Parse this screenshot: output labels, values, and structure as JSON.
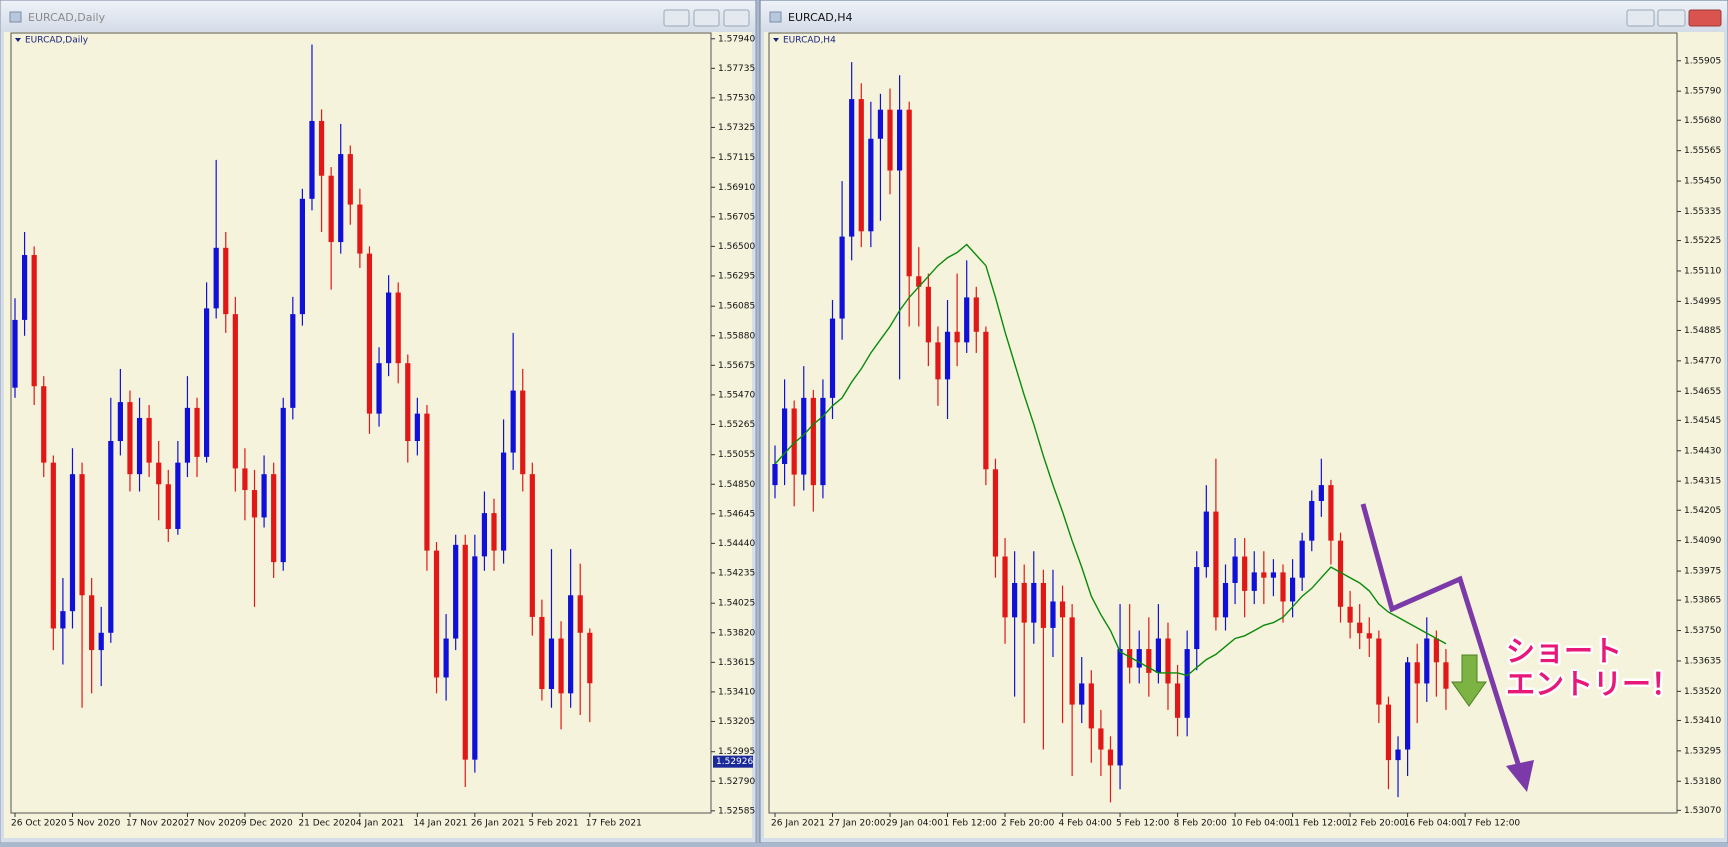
{
  "chart_data": [
    {
      "type": "candlestick",
      "window_title": "EURCAD,Daily",
      "title": "EURCAD,Daily",
      "up_color": "#1010d8",
      "down_color": "#e01818",
      "ylim": [
        1.5257,
        1.5798
      ],
      "yticks": [
        {
          "value": 1.5794,
          "label": "1.57940"
        },
        1.57735,
        {
          "value": 1.5753,
          "label": "1.57530"
        },
        1.57325,
        1.57115,
        {
          "value": 1.5691,
          "label": "1.56910"
        },
        1.56705,
        {
          "value": 1.565,
          "label": "1.56500"
        },
        1.56295,
        1.56085,
        {
          "value": 1.5588,
          "label": "1.55880"
        },
        1.55675,
        {
          "value": 1.5547,
          "label": "1.55470"
        },
        1.55265,
        1.55055,
        {
          "value": 1.5485,
          "label": "1.54850"
        },
        1.54645,
        {
          "value": 1.5444,
          "label": "1.54440"
        },
        1.54235,
        1.54025,
        {
          "value": 1.5382,
          "label": "1.53820"
        },
        1.53615,
        {
          "value": 1.5341,
          "label": "1.53410"
        },
        1.53205,
        1.52995,
        {
          "value": 1.5279,
          "label": "1.52790"
        },
        1.52585
      ],
      "current_price": 1.52926,
      "categories": [
        "26 Oct 2020",
        null,
        null,
        null,
        null,
        null,
        "5 Nov 2020",
        null,
        null,
        null,
        null,
        null,
        "17 Nov 2020",
        null,
        null,
        null,
        null,
        null,
        "27 Nov 2020",
        null,
        null,
        null,
        null,
        null,
        "9 Dec 2020",
        null,
        null,
        null,
        null,
        null,
        "21 Dec 2020",
        null,
        null,
        null,
        null,
        null,
        "4 Jan 2021",
        null,
        null,
        null,
        null,
        null,
        "14 Jan 2021",
        null,
        null,
        null,
        null,
        null,
        "26 Jan 2021",
        null,
        null,
        null,
        null,
        null,
        "5 Feb 2021",
        null,
        null,
        null,
        null,
        null,
        "17 Feb 2021"
      ],
      "ohlc": [
        [
          1.5552,
          1.5614,
          1.5545,
          1.5599
        ],
        [
          1.5599,
          1.566,
          1.5588,
          1.5644
        ],
        [
          1.5644,
          1.565,
          1.554,
          1.5553
        ],
        [
          1.5553,
          1.556,
          1.549,
          1.55
        ],
        [
          1.55,
          1.5505,
          1.537,
          1.5385
        ],
        [
          1.5385,
          1.542,
          1.536,
          1.5397
        ],
        [
          1.5397,
          1.551,
          1.5385,
          1.5492
        ],
        [
          1.5492,
          1.55,
          1.533,
          1.5408
        ],
        [
          1.5408,
          1.542,
          1.534,
          1.537
        ],
        [
          1.537,
          1.54,
          1.5345,
          1.5382
        ],
        [
          1.5382,
          1.5545,
          1.5375,
          1.5515
        ],
        [
          1.5515,
          1.5565,
          1.5505,
          1.5542
        ],
        [
          1.5542,
          1.555,
          1.548,
          1.5492
        ],
        [
          1.5492,
          1.5545,
          1.548,
          1.5531
        ],
        [
          1.5531,
          1.554,
          1.549,
          1.55
        ],
        [
          1.55,
          1.5515,
          1.546,
          1.5485
        ],
        [
          1.5485,
          1.5495,
          1.5445,
          1.5454
        ],
        [
          1.5454,
          1.5515,
          1.545,
          1.55
        ],
        [
          1.55,
          1.556,
          1.549,
          1.5538
        ],
        [
          1.5538,
          1.5545,
          1.549,
          1.5504
        ],
        [
          1.5504,
          1.5625,
          1.55,
          1.5607
        ],
        [
          1.5607,
          1.571,
          1.56,
          1.5649
        ],
        [
          1.5649,
          1.566,
          1.559,
          1.5603
        ],
        [
          1.5603,
          1.5615,
          1.548,
          1.5496
        ],
        [
          1.5496,
          1.551,
          1.546,
          1.5481
        ],
        [
          1.5481,
          1.5495,
          1.54,
          1.5462
        ],
        [
          1.5462,
          1.5505,
          1.5455,
          1.5492
        ],
        [
          1.5492,
          1.55,
          1.542,
          1.5431
        ],
        [
          1.5431,
          1.5545,
          1.5425,
          1.5538
        ],
        [
          1.5538,
          1.5615,
          1.553,
          1.5603
        ],
        [
          1.5603,
          1.569,
          1.5595,
          1.5683
        ],
        [
          1.5683,
          1.579,
          1.5675,
          1.5737
        ],
        [
          1.5737,
          1.5745,
          1.566,
          1.5699
        ],
        [
          1.5699,
          1.5705,
          1.562,
          1.5653
        ],
        [
          1.5653,
          1.5735,
          1.5645,
          1.5714
        ],
        [
          1.5714,
          1.572,
          1.5665,
          1.5679
        ],
        [
          1.5679,
          1.569,
          1.5635,
          1.5645
        ],
        [
          1.5645,
          1.565,
          1.552,
          1.5534
        ],
        [
          1.5534,
          1.558,
          1.5525,
          1.5569
        ],
        [
          1.5569,
          1.563,
          1.556,
          1.5618
        ],
        [
          1.5618,
          1.5625,
          1.5555,
          1.5569
        ],
        [
          1.5569,
          1.5575,
          1.55,
          1.5515
        ],
        [
          1.5515,
          1.5545,
          1.5505,
          1.5534
        ],
        [
          1.5534,
          1.554,
          1.5425,
          1.5439
        ],
        [
          1.5439,
          1.5445,
          1.534,
          1.5351
        ],
        [
          1.5351,
          1.5395,
          1.5335,
          1.5378
        ],
        [
          1.5378,
          1.545,
          1.537,
          1.5443
        ],
        [
          1.5443,
          1.545,
          1.5275,
          1.5294
        ],
        [
          1.5294,
          1.545,
          1.5285,
          1.5435
        ],
        [
          1.5435,
          1.548,
          1.5425,
          1.5465
        ],
        [
          1.5465,
          1.5475,
          1.5425,
          1.5439
        ],
        [
          1.5439,
          1.553,
          1.543,
          1.5507
        ],
        [
          1.5507,
          1.559,
          1.5495,
          1.555
        ],
        [
          1.555,
          1.5565,
          1.548,
          1.5492
        ],
        [
          1.5492,
          1.55,
          1.538,
          1.5393
        ],
        [
          1.5393,
          1.5405,
          1.5335,
          1.5343
        ],
        [
          1.5343,
          1.544,
          1.533,
          1.5378
        ],
        [
          1.5378,
          1.539,
          1.5315,
          1.534
        ],
        [
          1.534,
          1.544,
          1.533,
          1.5408
        ],
        [
          1.5408,
          1.543,
          1.5325,
          1.5382
        ],
        [
          1.5382,
          1.5385,
          1.532,
          1.5347
        ]
      ]
    },
    {
      "type": "candlestick",
      "window_title": "EURCAD,H4",
      "title": "EURCAD,H4",
      "up_color": "#1010d8",
      "down_color": "#e01818",
      "ylim": [
        1.5306,
        1.5601
      ],
      "yticks": [
        1.55905,
        {
          "value": 1.5579,
          "label": "1.55790"
        },
        {
          "value": 1.5568,
          "label": "1.55680"
        },
        1.55565,
        {
          "value": 1.5545,
          "label": "1.55450"
        },
        1.55335,
        1.55225,
        {
          "value": 1.5511,
          "label": "1.55110"
        },
        1.54995,
        1.54885,
        {
          "value": 1.5477,
          "label": "1.54770"
        },
        1.54655,
        1.54545,
        {
          "value": 1.5443,
          "label": "1.54430"
        },
        1.54315,
        1.54205,
        {
          "value": 1.5409,
          "label": "1.54090"
        },
        1.53975,
        1.53865,
        {
          "value": 1.5375,
          "label": "1.53750"
        },
        1.53635,
        {
          "value": 1.5352,
          "label": "1.53520"
        },
        {
          "value": 1.5341,
          "label": "1.53410"
        },
        1.53295,
        {
          "value": 1.5318,
          "label": "1.53180"
        },
        {
          "value": 1.5307,
          "label": "1.53070"
        }
      ],
      "categories": [
        "26 Jan 2021",
        null,
        null,
        null,
        null,
        null,
        "27 Jan 20:00",
        null,
        null,
        null,
        null,
        null,
        "29 Jan 04:00",
        null,
        null,
        null,
        null,
        null,
        "1 Feb 12:00",
        null,
        null,
        null,
        null,
        null,
        "2 Feb 20:00",
        null,
        null,
        null,
        null,
        null,
        "4 Feb 04:00",
        null,
        null,
        null,
        null,
        null,
        "5 Feb 12:00",
        null,
        null,
        null,
        null,
        null,
        "8 Feb 20:00",
        null,
        null,
        null,
        null,
        null,
        "10 Feb 04:00",
        null,
        null,
        null,
        null,
        null,
        "11 Feb 12:00",
        null,
        null,
        null,
        null,
        null,
        "12 Feb 20:00",
        null,
        null,
        null,
        null,
        null,
        "16 Feb 04:00",
        null,
        null,
        null,
        null,
        null,
        "17 Feb 12:00"
      ],
      "ohlc": [
        [
          1.543,
          1.5445,
          1.5425,
          1.5438
        ],
        [
          1.5438,
          1.547,
          1.543,
          1.5459
        ],
        [
          1.5459,
          1.5462,
          1.5422,
          1.5434
        ],
        [
          1.5434,
          1.5475,
          1.5428,
          1.5463
        ],
        [
          1.5463,
          1.5466,
          1.542,
          1.543
        ],
        [
          1.543,
          1.547,
          1.5425,
          1.5463
        ],
        [
          1.5463,
          1.55,
          1.5455,
          1.5493
        ],
        [
          1.5493,
          1.5545,
          1.5485,
          1.5524
        ],
        [
          1.5524,
          1.559,
          1.5515,
          1.5576
        ],
        [
          1.5576,
          1.5582,
          1.552,
          1.5526
        ],
        [
          1.5526,
          1.5575,
          1.552,
          1.5561
        ],
        [
          1.5561,
          1.5578,
          1.553,
          1.5572
        ],
        [
          1.5572,
          1.558,
          1.554,
          1.5549
        ],
        [
          1.5549,
          1.5585,
          1.547,
          1.5572
        ],
        [
          1.5572,
          1.5575,
          1.549,
          1.5509
        ],
        [
          1.5509,
          1.552,
          1.549,
          1.5505
        ],
        [
          1.5505,
          1.551,
          1.5475,
          1.5484
        ],
        [
          1.5484,
          1.549,
          1.546,
          1.547
        ],
        [
          1.547,
          1.55,
          1.5455,
          1.5488
        ],
        [
          1.5488,
          1.551,
          1.5475,
          1.5484
        ],
        [
          1.5484,
          1.5515,
          1.548,
          1.5501
        ],
        [
          1.5501,
          1.5505,
          1.548,
          1.5488
        ],
        [
          1.5488,
          1.549,
          1.543,
          1.5436
        ],
        [
          1.5436,
          1.544,
          1.5395,
          1.5403
        ],
        [
          1.5403,
          1.541,
          1.537,
          1.538
        ],
        [
          1.538,
          1.5405,
          1.535,
          1.5393
        ],
        [
          1.5393,
          1.54,
          1.534,
          1.5378
        ],
        [
          1.5378,
          1.5405,
          1.537,
          1.5393
        ],
        [
          1.5393,
          1.5398,
          1.533,
          1.5376
        ],
        [
          1.5376,
          1.5398,
          1.5365,
          1.5386
        ],
        [
          1.5386,
          1.5392,
          1.534,
          1.538
        ],
        [
          1.538,
          1.5385,
          1.532,
          1.5347
        ],
        [
          1.5347,
          1.5365,
          1.534,
          1.5355
        ],
        [
          1.5355,
          1.536,
          1.5325,
          1.5338
        ],
        [
          1.5338,
          1.5345,
          1.532,
          1.533
        ],
        [
          1.533,
          1.5335,
          1.531,
          1.5324
        ],
        [
          1.5324,
          1.5385,
          1.5315,
          1.5368
        ],
        [
          1.5368,
          1.5385,
          1.5355,
          1.5361
        ],
        [
          1.5361,
          1.5375,
          1.5355,
          1.5368
        ],
        [
          1.5368,
          1.538,
          1.535,
          1.5359
        ],
        [
          1.5359,
          1.5385,
          1.5355,
          1.5372
        ],
        [
          1.5372,
          1.5378,
          1.5345,
          1.5355
        ],
        [
          1.5355,
          1.5362,
          1.5335,
          1.5342
        ],
        [
          1.5342,
          1.5375,
          1.5335,
          1.5368
        ],
        [
          1.5368,
          1.5405,
          1.536,
          1.5399
        ],
        [
          1.5399,
          1.543,
          1.5395,
          1.542
        ],
        [
          1.542,
          1.544,
          1.5375,
          1.538
        ],
        [
          1.538,
          1.54,
          1.5375,
          1.5393
        ],
        [
          1.5393,
          1.541,
          1.5385,
          1.5403
        ],
        [
          1.5403,
          1.541,
          1.538,
          1.539
        ],
        [
          1.539,
          1.5405,
          1.5385,
          1.5397
        ],
        [
          1.5397,
          1.5405,
          1.5385,
          1.5395
        ],
        [
          1.5395,
          1.5402,
          1.5388,
          1.5397
        ],
        [
          1.5397,
          1.54,
          1.5378,
          1.5386
        ],
        [
          1.5386,
          1.5402,
          1.538,
          1.5395
        ],
        [
          1.5395,
          1.5412,
          1.539,
          1.5409
        ],
        [
          1.5409,
          1.5428,
          1.5405,
          1.5424
        ],
        [
          1.5424,
          1.544,
          1.5418,
          1.543
        ],
        [
          1.543,
          1.5432,
          1.54,
          1.5409
        ],
        [
          1.5409,
          1.5412,
          1.5378,
          1.5384
        ],
        [
          1.5384,
          1.539,
          1.5372,
          1.5378
        ],
        [
          1.5378,
          1.5385,
          1.5368,
          1.5374
        ],
        [
          1.5374,
          1.538,
          1.5365,
          1.5372
        ],
        [
          1.5372,
          1.5375,
          1.534,
          1.5347
        ],
        [
          1.5347,
          1.535,
          1.5315,
          1.5326
        ],
        [
          1.5326,
          1.5335,
          1.5312,
          1.533
        ],
        [
          1.533,
          1.5365,
          1.532,
          1.5363
        ],
        [
          1.5363,
          1.537,
          1.534,
          1.5355
        ],
        [
          1.5355,
          1.538,
          1.5348,
          1.5372
        ],
        [
          1.5372,
          1.5375,
          1.535,
          1.5363
        ],
        [
          1.5363,
          1.5368,
          1.5345,
          1.5353
        ],
        null,
        null
      ],
      "ma": {
        "color": "#0a8a0a",
        "values": [
          1.5438,
          1.5442,
          1.5446,
          1.5449,
          1.5453,
          1.5456,
          1.546,
          1.5463,
          1.5469,
          1.5474,
          1.548,
          1.5485,
          1.549,
          1.5496,
          1.5501,
          1.5505,
          1.5509,
          1.5513,
          1.5516,
          1.5518,
          1.5521,
          1.5517,
          1.5513,
          1.5501,
          1.5488,
          1.5476,
          1.5464,
          1.5453,
          1.5441,
          1.543,
          1.542,
          1.5409,
          1.5399,
          1.5388,
          1.5381,
          1.5375,
          1.5367,
          1.5365,
          1.5363,
          1.5361,
          1.5359,
          1.5359,
          1.5359,
          1.5358,
          1.5361,
          1.5364,
          1.5366,
          1.5369,
          1.5372,
          1.5373,
          1.5375,
          1.5377,
          1.5378,
          1.538,
          1.5384,
          1.5388,
          1.5391,
          1.5395,
          1.5399,
          1.5397,
          1.5395,
          1.5393,
          1.539,
          1.5385,
          1.5382,
          1.538,
          1.5378,
          1.5376,
          1.5374,
          1.5372,
          1.537,
          null,
          null
        ]
      },
      "annotation_lines": [
        "ショート",
        "エントリー！"
      ]
    }
  ]
}
